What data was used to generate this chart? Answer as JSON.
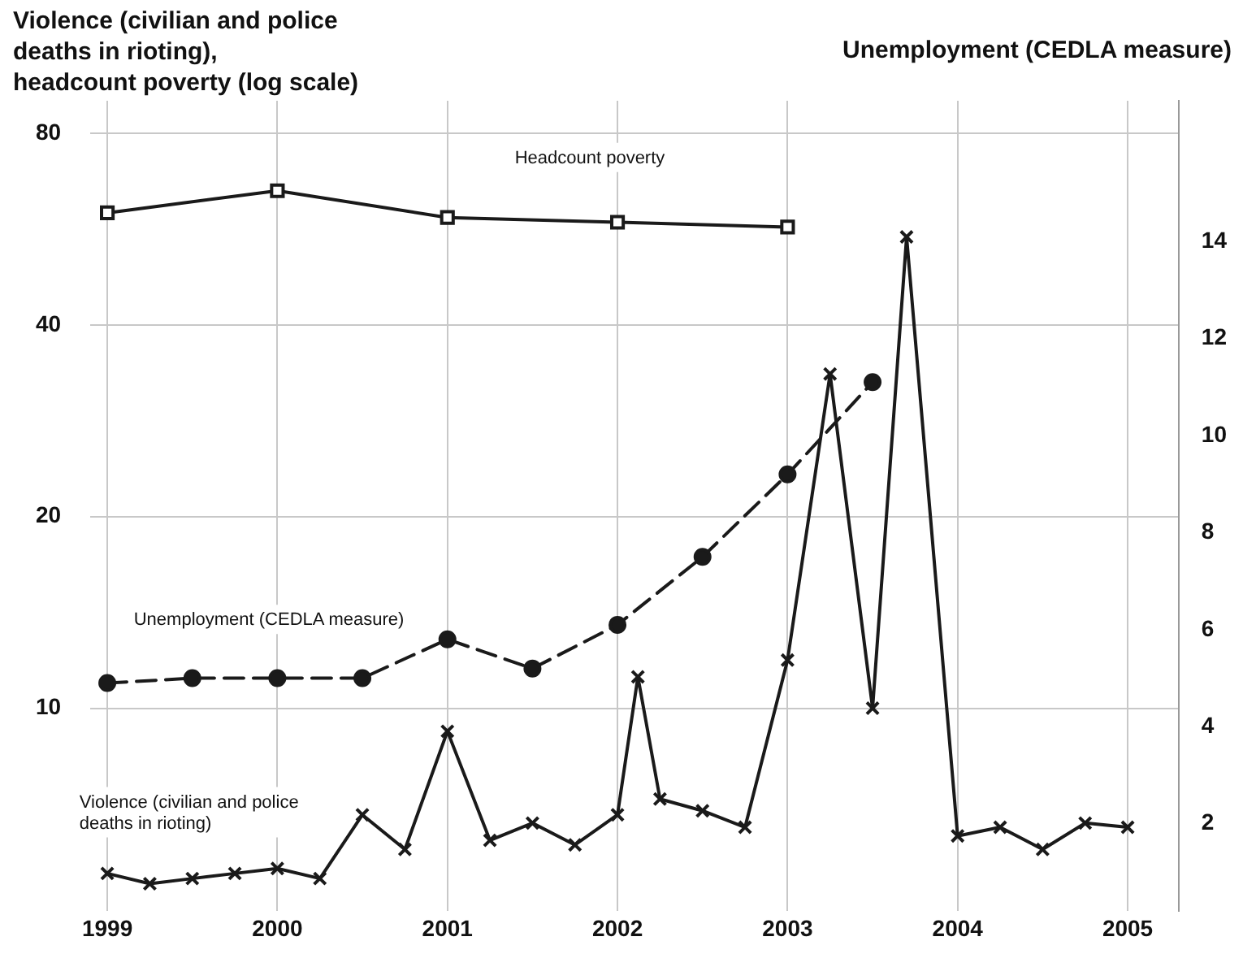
{
  "chart_data": {
    "type": "line",
    "ylabel": "Violence (civilian and police\ndeaths in rioting),\nheadcount poverty (log scale)",
    "y2label": "Unemployment (CEDLA measure)",
    "log": "y",
    "grid": true,
    "legend": false,
    "xlim": [
      1998.9,
      2005.3
    ],
    "xticks": [
      1999,
      2000,
      2001,
      2002,
      2003,
      2004,
      2005
    ],
    "ylim": [
      4.8,
      90
    ],
    "yticks": [
      10,
      20,
      40,
      80
    ],
    "y2lim": [
      0.2,
      16.9
    ],
    "y2ticks": [
      2,
      4,
      6,
      8,
      10,
      12,
      14
    ],
    "series": [
      {
        "name": "Headcount poverty",
        "color": "#1a1a1a",
        "marker": "square",
        "line_style": "solid",
        "x": [
          1999,
          2000,
          2001,
          2002,
          2003
        ],
        "values": [
          60,
          65,
          59,
          58,
          57
        ]
      },
      {
        "name": "Unemployment (CEDLA measure)",
        "color": "#1a1a1a",
        "axis": "y2",
        "marker": "circle",
        "line_style": "dashed",
        "x": [
          1999,
          1999.5,
          2000,
          2000.5,
          2001,
          2001.5,
          2002,
          2002.5,
          2003,
          2003.5
        ],
        "values": [
          4.9,
          5.0,
          5.0,
          5.0,
          5.8,
          5.2,
          6.1,
          7.5,
          9.2,
          11.1
        ]
      },
      {
        "name": "Violence (civilian and police deaths in rioting)",
        "color": "#1a1a1a",
        "marker": "cross",
        "line_style": "solid",
        "x": [
          1999,
          1999.25,
          1999.5,
          1999.75,
          2000,
          2000.25,
          2000.5,
          2000.75,
          2001,
          2001.25,
          2001.5,
          2001.75,
          2002,
          2002.12,
          2002.25,
          2002.5,
          2002.75,
          2003,
          2003.25,
          2003.5,
          2003.7,
          2004,
          2004.25,
          2004.5,
          2004.75,
          2005
        ],
        "values": [
          5.5,
          5.3,
          5.4,
          5.5,
          5.6,
          5.4,
          6.8,
          6.0,
          9.2,
          6.2,
          6.6,
          6.1,
          6.8,
          11.2,
          7.2,
          6.9,
          6.5,
          11.9,
          33.5,
          10.0,
          55,
          6.3,
          6.5,
          6.0,
          6.6,
          6.5
        ]
      }
    ]
  }
}
